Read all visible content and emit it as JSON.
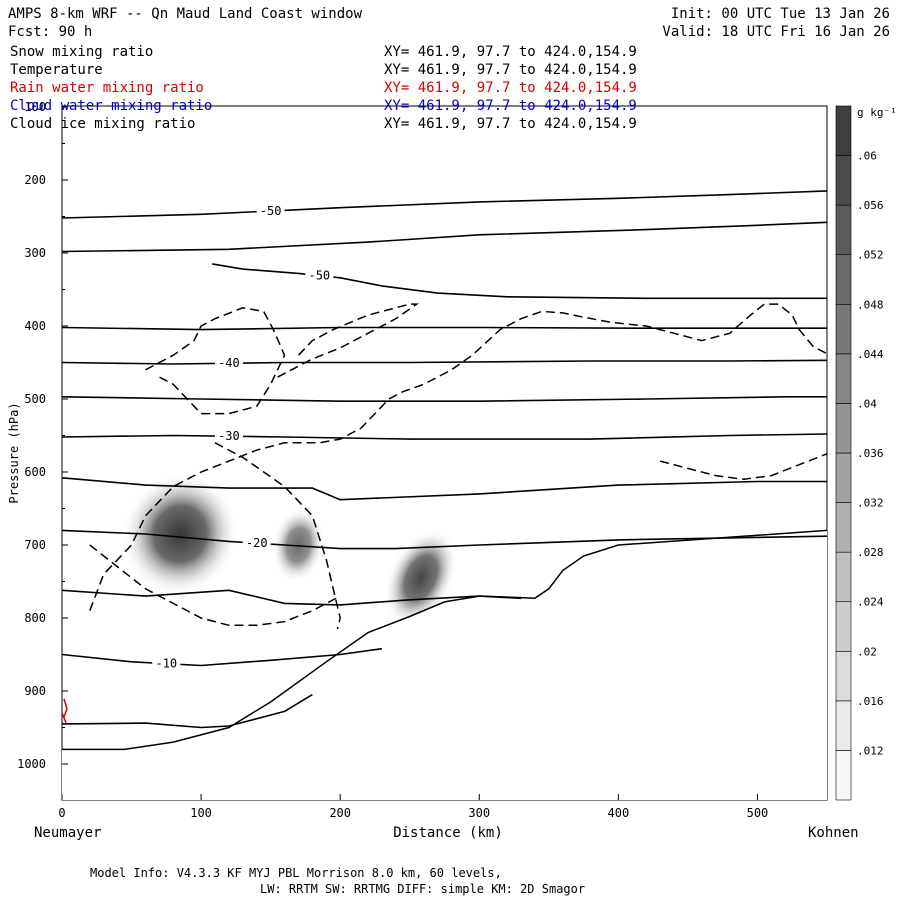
{
  "header": {
    "title": "AMPS 8-km WRF -- Qn Maud Land Coast window",
    "forecast": "Fcst:   90 h",
    "init": "Init: 00 UTC Tue 13 Jan 26",
    "valid": "Valid: 18 UTC Fri 16 Jan 26"
  },
  "legend": [
    {
      "label": "Snow mixing ratio",
      "xy": "XY= 461.9, 97.7 to 424.0,154.9",
      "color": "#000000"
    },
    {
      "label": "Temperature",
      "xy": "XY= 461.9, 97.7 to 424.0,154.9",
      "color": "#000000"
    },
    {
      "label": "Rain water mixing ratio",
      "xy": "XY= 461.9, 97.7 to 424.0,154.9",
      "color": "#dd0000"
    },
    {
      "label": "Cloud water mixing ratio",
      "xy": "XY= 461.9, 97.7 to 424.0,154.9",
      "color": "#0000cc"
    },
    {
      "label": "Cloud ice mixing ratio",
      "xy": "XY= 461.9, 97.7 to 424.0,154.9",
      "color": "#000000"
    }
  ],
  "footer": {
    "line1": "Model Info: V4.3.3   KF      MYJ PBL  Morrison           8.0 km,  60 levels,",
    "line2": "LW: RRTM SW: RRTMG   DIFF: simple KM: 2D Smagor"
  },
  "chart_data": {
    "type": "heatmap",
    "title": "AMPS 8-km WRF -- Qn Maud Land Coast window",
    "xlabel": "Distance (km)",
    "ylabel": "Pressure (hPa)",
    "xlim": [
      0,
      550
    ],
    "ylim": [
      1050,
      100
    ],
    "x_ticks": [
      0,
      100,
      200,
      300,
      400,
      500
    ],
    "y_ticks": [
      100,
      200,
      300,
      400,
      500,
      600,
      700,
      800,
      900,
      1000
    ],
    "x_end_labels": {
      "left": "Neumayer",
      "right": "Kohnen"
    },
    "colorbar": {
      "unit": "g kg⁻¹",
      "min": 0.008,
      "max": 0.064,
      "step": 0.004,
      "tick_labels": [
        ".012",
        ".016",
        ".02",
        ".024",
        ".028",
        ".032",
        ".036",
        ".04",
        ".044",
        ".048",
        ".052",
        ".056",
        ".06"
      ]
    },
    "snow_maxima": [
      {
        "x_km": 85,
        "p_hpa": 685,
        "peak": 0.064
      },
      {
        "x_km": 170,
        "p_hpa": 700,
        "peak": 0.05
      },
      {
        "x_km": 258,
        "p_hpa": 745,
        "peak": 0.06
      }
    ],
    "terrain": [
      [
        0,
        1050
      ],
      [
        0,
        980
      ],
      [
        45,
        980
      ],
      [
        80,
        970
      ],
      [
        120,
        950
      ],
      [
        150,
        915
      ],
      [
        190,
        860
      ],
      [
        220,
        820
      ],
      [
        250,
        798
      ],
      [
        275,
        778
      ],
      [
        300,
        770
      ],
      [
        330,
        772
      ],
      [
        340,
        773
      ],
      [
        350,
        760
      ],
      [
        360,
        735
      ],
      [
        375,
        715
      ],
      [
        400,
        700
      ],
      [
        550,
        680
      ],
      [
        550,
        1050
      ]
    ],
    "temperature_isotherms": [
      {
        "label": "-50",
        "points": [
          [
            0,
            252
          ],
          [
            100,
            247
          ],
          [
            200,
            238
          ],
          [
            300,
            230
          ],
          [
            400,
            225
          ],
          [
            480,
            220
          ],
          [
            550,
            215
          ]
        ]
      },
      {
        "label": "",
        "points": [
          [
            0,
            298
          ],
          [
            120,
            295
          ],
          [
            220,
            285
          ],
          [
            300,
            275
          ],
          [
            420,
            268
          ],
          [
            500,
            262
          ],
          [
            550,
            258
          ]
        ]
      },
      {
        "label": "-50",
        "points": [
          [
            108,
            315
          ],
          [
            130,
            322
          ],
          [
            170,
            328
          ],
          [
            200,
            334
          ],
          [
            230,
            345
          ],
          [
            270,
            355
          ],
          [
            320,
            360
          ],
          [
            420,
            362
          ],
          [
            550,
            362
          ]
        ]
      },
      {
        "label": "",
        "points": [
          [
            0,
            402
          ],
          [
            100,
            405
          ],
          [
            200,
            402
          ],
          [
            300,
            402
          ],
          [
            420,
            403
          ],
          [
            550,
            403
          ]
        ]
      },
      {
        "label": "-40",
        "points": [
          [
            0,
            450
          ],
          [
            80,
            452
          ],
          [
            160,
            450
          ],
          [
            250,
            450
          ],
          [
            380,
            448
          ],
          [
            480,
            448
          ],
          [
            550,
            447
          ]
        ]
      },
      {
        "label": "",
        "points": [
          [
            0,
            497
          ],
          [
            100,
            500
          ],
          [
            200,
            503
          ],
          [
            300,
            503
          ],
          [
            420,
            500
          ],
          [
            520,
            497
          ],
          [
            550,
            497
          ]
        ]
      },
      {
        "label": "-30",
        "points": [
          [
            0,
            552
          ],
          [
            80,
            550
          ],
          [
            160,
            552
          ],
          [
            250,
            555
          ],
          [
            380,
            555
          ],
          [
            480,
            550
          ],
          [
            550,
            548
          ]
        ]
      },
      {
        "label": "",
        "points": [
          [
            0,
            608
          ],
          [
            60,
            618
          ],
          [
            120,
            622
          ],
          [
            180,
            622
          ],
          [
            200,
            638
          ],
          [
            300,
            630
          ],
          [
            400,
            618
          ],
          [
            500,
            613
          ],
          [
            550,
            613
          ]
        ]
      },
      {
        "label": "-20",
        "points": [
          [
            0,
            680
          ],
          [
            60,
            685
          ],
          [
            120,
            695
          ],
          [
            160,
            700
          ],
          [
            200,
            705
          ],
          [
            240,
            705
          ],
          [
            300,
            700
          ],
          [
            400,
            693
          ],
          [
            550,
            688
          ]
        ]
      },
      {
        "label": "",
        "points": [
          [
            0,
            762
          ],
          [
            60,
            770
          ],
          [
            120,
            762
          ],
          [
            160,
            780
          ],
          [
            200,
            782
          ],
          [
            250,
            775
          ],
          [
            300,
            770
          ],
          [
            330,
            773
          ]
        ]
      },
      {
        "label": "-10",
        "points": [
          [
            0,
            850
          ],
          [
            50,
            860
          ],
          [
            100,
            865
          ],
          [
            150,
            858
          ],
          [
            200,
            850
          ],
          [
            230,
            842
          ]
        ]
      },
      {
        "label": "",
        "points": [
          [
            0,
            945
          ],
          [
            60,
            944
          ],
          [
            100,
            950
          ],
          [
            120,
            948
          ],
          [
            160,
            928
          ],
          [
            180,
            905
          ]
        ]
      }
    ],
    "cloud_ice_dashed": [
      {
        "points": [
          [
            20,
            790
          ],
          [
            30,
            740
          ],
          [
            40,
            720
          ],
          [
            50,
            700
          ],
          [
            60,
            660
          ],
          [
            70,
            640
          ],
          [
            80,
            620
          ],
          [
            100,
            600
          ],
          [
            120,
            585
          ],
          [
            140,
            570
          ],
          [
            160,
            560
          ],
          [
            185,
            560
          ],
          [
            200,
            555
          ],
          [
            215,
            540
          ],
          [
            225,
            520
          ],
          [
            235,
            500
          ],
          [
            245,
            490
          ],
          [
            260,
            480
          ],
          [
            280,
            460
          ],
          [
            295,
            440
          ],
          [
            315,
            405
          ],
          [
            330,
            390
          ],
          [
            345,
            380
          ],
          [
            360,
            382
          ],
          [
            375,
            388
          ],
          [
            395,
            395
          ],
          [
            420,
            400
          ],
          [
            440,
            410
          ],
          [
            460,
            420
          ],
          [
            480,
            410
          ],
          [
            495,
            385
          ],
          [
            505,
            370
          ],
          [
            515,
            370
          ],
          [
            525,
            385
          ],
          [
            530,
            405
          ],
          [
            540,
            428
          ],
          [
            550,
            438
          ]
        ]
      },
      {
        "points": [
          [
            110,
            560
          ],
          [
            130,
            580
          ],
          [
            145,
            600
          ],
          [
            160,
            620
          ],
          [
            170,
            640
          ],
          [
            180,
            660
          ],
          [
            185,
            690
          ],
          [
            190,
            720
          ],
          [
            195,
            760
          ],
          [
            200,
            800
          ],
          [
            198,
            815
          ]
        ]
      },
      {
        "points": [
          [
            60,
            460
          ],
          [
            80,
            440
          ],
          [
            95,
            420
          ],
          [
            100,
            400
          ],
          [
            110,
            390
          ],
          [
            130,
            375
          ],
          [
            145,
            380
          ],
          [
            152,
            405
          ],
          [
            160,
            440
          ],
          [
            150,
            480
          ],
          [
            140,
            510
          ],
          [
            120,
            520
          ],
          [
            100,
            520
          ],
          [
            90,
            500
          ],
          [
            80,
            480
          ],
          [
            70,
            470
          ]
        ]
      },
      {
        "points": [
          [
            170,
            440
          ],
          [
            180,
            420
          ],
          [
            195,
            405
          ],
          [
            220,
            385
          ],
          [
            240,
            375
          ],
          [
            250,
            370
          ],
          [
            255,
            370
          ],
          [
            240,
            390
          ],
          [
            220,
            410
          ],
          [
            200,
            430
          ],
          [
            180,
            445
          ],
          [
            165,
            460
          ],
          [
            155,
            470
          ]
        ]
      },
      {
        "points": [
          [
            20,
            700
          ],
          [
            40,
            730
          ],
          [
            60,
            760
          ],
          [
            80,
            780
          ],
          [
            100,
            800
          ],
          [
            120,
            810
          ],
          [
            140,
            810
          ],
          [
            160,
            805
          ],
          [
            180,
            790
          ],
          [
            200,
            770
          ]
        ]
      },
      {
        "points": [
          [
            430,
            585
          ],
          [
            450,
            595
          ],
          [
            470,
            605
          ],
          [
            490,
            610
          ],
          [
            510,
            605
          ],
          [
            530,
            590
          ],
          [
            550,
            575
          ]
        ]
      }
    ]
  }
}
